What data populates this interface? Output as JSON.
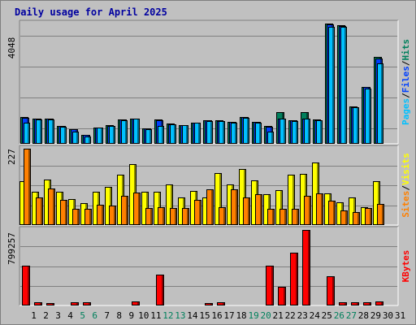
{
  "chart_data": {
    "type": "bar",
    "title": "Daily usage for April 2025",
    "categories": [
      "1",
      "2",
      "3",
      "4",
      "5",
      "6",
      "7",
      "8",
      "9",
      "10",
      "11",
      "12",
      "13",
      "14",
      "15",
      "16",
      "17",
      "18",
      "19",
      "20",
      "21",
      "22",
      "23",
      "24",
      "25",
      "26",
      "27",
      "28",
      "29",
      "30",
      "31"
    ],
    "weekend_days": [
      "5",
      "6",
      "12",
      "13",
      "19",
      "20",
      "26",
      "27"
    ],
    "panels": [
      {
        "id": "top",
        "ymax_label": "4048",
        "right_labels": [
          "Pages",
          "/",
          "Files",
          "/",
          "Hits"
        ],
        "series": [
          {
            "name": "Hits",
            "color": "#00805c",
            "values": [
              900,
              860,
              860,
              600,
              500,
              300,
              560,
              620,
              820,
              860,
              520,
              810,
              680,
              640,
              720,
              790,
              780,
              740,
              900,
              740,
              590,
              1060,
              790,
              1060,
              810,
              4048,
              3990,
              1250,
              1920,
              2920,
              0
            ]
          },
          {
            "name": "Files",
            "color": "#0040ff",
            "values": [
              880,
              840,
              840,
              590,
              490,
              290,
              550,
              610,
              810,
              850,
              510,
              800,
              670,
              630,
              710,
              780,
              770,
              730,
              890,
              730,
              580,
              840,
              780,
              840,
              800,
              4010,
              3960,
              1240,
              1910,
              2880,
              0
            ]
          },
          {
            "name": "Pages",
            "color": "#00c0ff",
            "values": [
              700,
              820,
              820,
              580,
              420,
              240,
              540,
              600,
              790,
              840,
              490,
              610,
              660,
              620,
              700,
              760,
              760,
              720,
              870,
              720,
              410,
              860,
              760,
              860,
              780,
              3930,
              3930,
              1230,
              1850,
              2720,
              0
            ]
          }
        ]
      },
      {
        "id": "middle",
        "ymax_label": "227",
        "right_labels": [
          "Sites",
          "/",
          "Visits"
        ],
        "series": [
          {
            "name": "Visits",
            "color": "#ffff00",
            "values": [
              128,
              97,
              132,
              98,
              75,
              63,
              97,
              110,
              147,
              178,
              97,
              97,
              118,
              80,
              100,
              80,
              152,
              117,
              162,
              130,
              90,
              101,
              147,
              148,
              183,
              91,
              65,
              80,
              52,
              128,
              0
            ]
          },
          {
            "name": "Sites",
            "color": "#ff8000",
            "values": [
              222,
              80,
              107,
              74,
              47,
              47,
              60,
              57,
              85,
              95,
              49,
              53,
              49,
              49,
              74,
              104,
              53,
              104,
              80,
              90,
              48,
              47,
              48,
              84,
              91,
              70,
              42,
              38,
              50,
              61,
              0
            ]
          }
        ]
      },
      {
        "id": "bottom",
        "ymax_label": "799257",
        "right_labels": [
          "KBytes"
        ],
        "series": [
          {
            "name": "KBytes",
            "color": "#ff0000",
            "values": [
              418900,
              30900,
              23000,
              12000,
              30900,
              30900,
              12000,
              12000,
              12000,
              46000,
              12000,
              330000,
              12000,
              12000,
              12000,
              23000,
              30900,
              12000,
              12000,
              12000,
              418900,
              200000,
              562000,
              799257,
              12000,
              310000,
              38000,
              30900,
              30900,
              46000,
              0
            ]
          }
        ]
      }
    ]
  }
}
